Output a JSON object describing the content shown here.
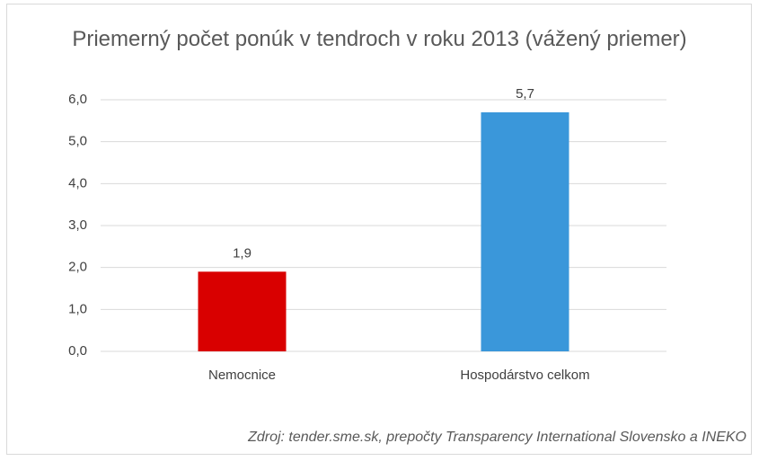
{
  "chart_data": {
    "type": "bar",
    "title": "Priemerný počet ponúk v tendroch v roku 2013 (vážený priemer)",
    "categories": [
      "Nemocnice",
      "Hospodárstvo celkom"
    ],
    "values": [
      1.9,
      5.7
    ],
    "value_labels": [
      "1,9",
      "5,7"
    ],
    "colors": [
      "#d90000",
      "#3a97da"
    ],
    "ylim": [
      0,
      6
    ],
    "yticks": [
      {
        "value": 0,
        "label": "0,0"
      },
      {
        "value": 1,
        "label": "1,0"
      },
      {
        "value": 2,
        "label": "2,0"
      },
      {
        "value": 3,
        "label": "3,0"
      },
      {
        "value": 4,
        "label": "4,0"
      },
      {
        "value": 5,
        "label": "5,0"
      },
      {
        "value": 6,
        "label": "6,0"
      }
    ],
    "grid": true,
    "source": "Zdroj: tender.sme.sk, prepočty Transparency International Slovensko a INEKO"
  }
}
